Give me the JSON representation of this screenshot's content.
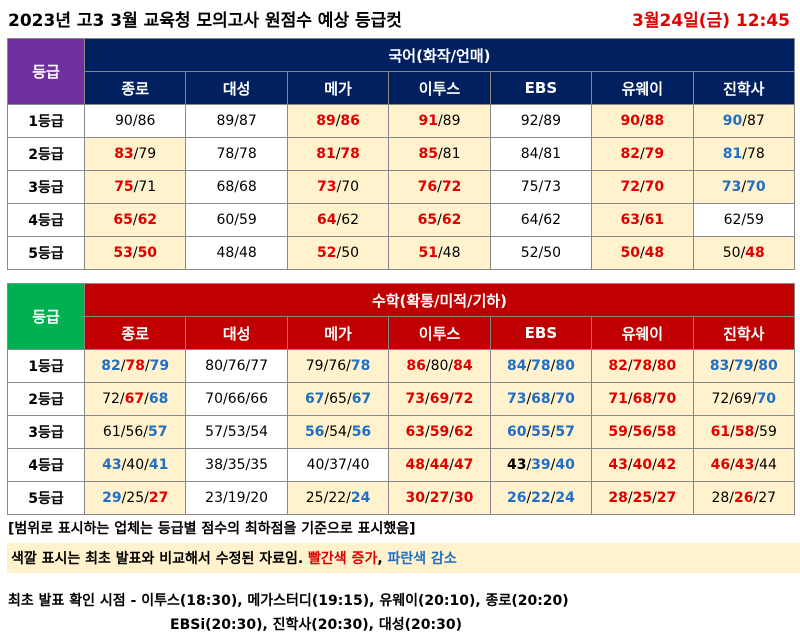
{
  "header": {
    "title": "2023년 고3 3월 교육청 모의고사 원점수 예상 등급컷",
    "time": "3월24일(금) 12:45"
  },
  "tables": [
    {
      "corner": "등급",
      "title": "국어(화작/언매)",
      "corner_color": "#7030a0",
      "head_color": "#002060",
      "columns": [
        "종로",
        "대성",
        "메가",
        "이투스",
        "EBS",
        "유웨이",
        "진학사"
      ],
      "rows": [
        {
          "label": "1등급",
          "cells": [
            [
              "90/86",
              "kk"
            ],
            [
              "89/87",
              "kk"
            ],
            [
              "89/86",
              "rr"
            ],
            [
              "91/89",
              "rk"
            ],
            [
              "92/89",
              "kk"
            ],
            [
              "90/88",
              "rr"
            ],
            [
              "90/87",
              "bk"
            ]
          ]
        },
        {
          "label": "2등급",
          "cells": [
            [
              "83/79",
              "rk"
            ],
            [
              "78/78",
              "kk"
            ],
            [
              "81/78",
              "rr"
            ],
            [
              "85/81",
              "rk"
            ],
            [
              "84/81",
              "kk"
            ],
            [
              "82/79",
              "rr"
            ],
            [
              "81/78",
              "bk"
            ]
          ]
        },
        {
          "label": "3등급",
          "cells": [
            [
              "75/71",
              "rk"
            ],
            [
              "68/68",
              "kk"
            ],
            [
              "73/70",
              "rk"
            ],
            [
              "76/72",
              "rr"
            ],
            [
              "75/73",
              "kk"
            ],
            [
              "72/70",
              "rr"
            ],
            [
              "73/70",
              "bb"
            ]
          ]
        },
        {
          "label": "4등급",
          "cells": [
            [
              "65/62",
              "rr"
            ],
            [
              "60/59",
              "kk"
            ],
            [
              "64/62",
              "rk"
            ],
            [
              "65/62",
              "rr"
            ],
            [
              "64/62",
              "kk"
            ],
            [
              "63/61",
              "rr"
            ],
            [
              "62/59",
              "kk"
            ]
          ]
        },
        {
          "label": "5등급",
          "cells": [
            [
              "53/50",
              "rr"
            ],
            [
              "48/48",
              "kk"
            ],
            [
              "52/50",
              "rk"
            ],
            [
              "51/48",
              "rk"
            ],
            [
              "52/50",
              "kk"
            ],
            [
              "50/48",
              "rr"
            ],
            [
              "50/48",
              "kr"
            ]
          ]
        }
      ]
    },
    {
      "corner": "등급",
      "title": "수학(확통/미적/기하)",
      "corner_color": "#00b050",
      "head_color": "#c00000",
      "columns": [
        "종로",
        "대성",
        "메가",
        "이투스",
        "EBS",
        "유웨이",
        "진학사"
      ],
      "rows": [
        {
          "label": "1등급",
          "cells": [
            [
              "82/78/79",
              "brb"
            ],
            [
              "80/76/77",
              "kkk"
            ],
            [
              "79/76/78",
              "kkb"
            ],
            [
              "86/80/84",
              "rkr"
            ],
            [
              "84/78/80",
              "bbb"
            ],
            [
              "82/78/80",
              "rrr"
            ],
            [
              "83/79/80",
              "bbb"
            ]
          ]
        },
        {
          "label": "2등급",
          "cells": [
            [
              "72/67/68",
              "krb"
            ],
            [
              "70/66/66",
              "kkk"
            ],
            [
              "67/65/67",
              "bkb"
            ],
            [
              "73/69/72",
              "rrr"
            ],
            [
              "73/68/70",
              "bbb"
            ],
            [
              "71/68/70",
              "rrr"
            ],
            [
              "72/69/70",
              "kkb"
            ]
          ]
        },
        {
          "label": "3등급",
          "cells": [
            [
              "61/56/57",
              "kkb"
            ],
            [
              "57/53/54",
              "kkk"
            ],
            [
              "56/54/56",
              "bkb"
            ],
            [
              "63/59/62",
              "rrr"
            ],
            [
              "60/55/57",
              "bbb"
            ],
            [
              "59/56/58",
              "rrr"
            ],
            [
              "61/58/59",
              "rrk"
            ]
          ]
        },
        {
          "label": "4등급",
          "cells": [
            [
              "43/40/41",
              "bkb"
            ],
            [
              "38/35/35",
              "kkk"
            ],
            [
              "40/37/40",
              "kkk"
            ],
            [
              "48/44/47",
              "rrr"
            ],
            [
              "43/39/40",
              "Kbb"
            ],
            [
              "43/40/42",
              "rrr"
            ],
            [
              "46/43/44",
              "rrk"
            ]
          ]
        },
        {
          "label": "5등급",
          "cells": [
            [
              "29/25/27",
              "bkr"
            ],
            [
              "23/19/20",
              "kkk"
            ],
            [
              "25/22/24",
              "kkb"
            ],
            [
              "30/27/30",
              "rrr"
            ],
            [
              "26/22/24",
              "bbb"
            ],
            [
              "28/25/27",
              "rrr"
            ],
            [
              "28/26/27",
              "krk"
            ]
          ]
        }
      ]
    }
  ],
  "notes": [
    "[범위로 표시하는 업체는 등급별 점수의 최하점을 기준으로 표시했음]",
    [
      "색깔 표시는 최초 발표와 비교해서 수정된 자료임. ",
      "빨간색 증가",
      ", ",
      "파란색 감소"
    ],
    "최초 발표 확인 시점 - 이투스(18:30), 메가스터디(19:15), 유웨이(20:10), 종로(20:20)",
    "EBSi(20:30), 진학사(20:30), 대성(20:30)"
  ]
}
